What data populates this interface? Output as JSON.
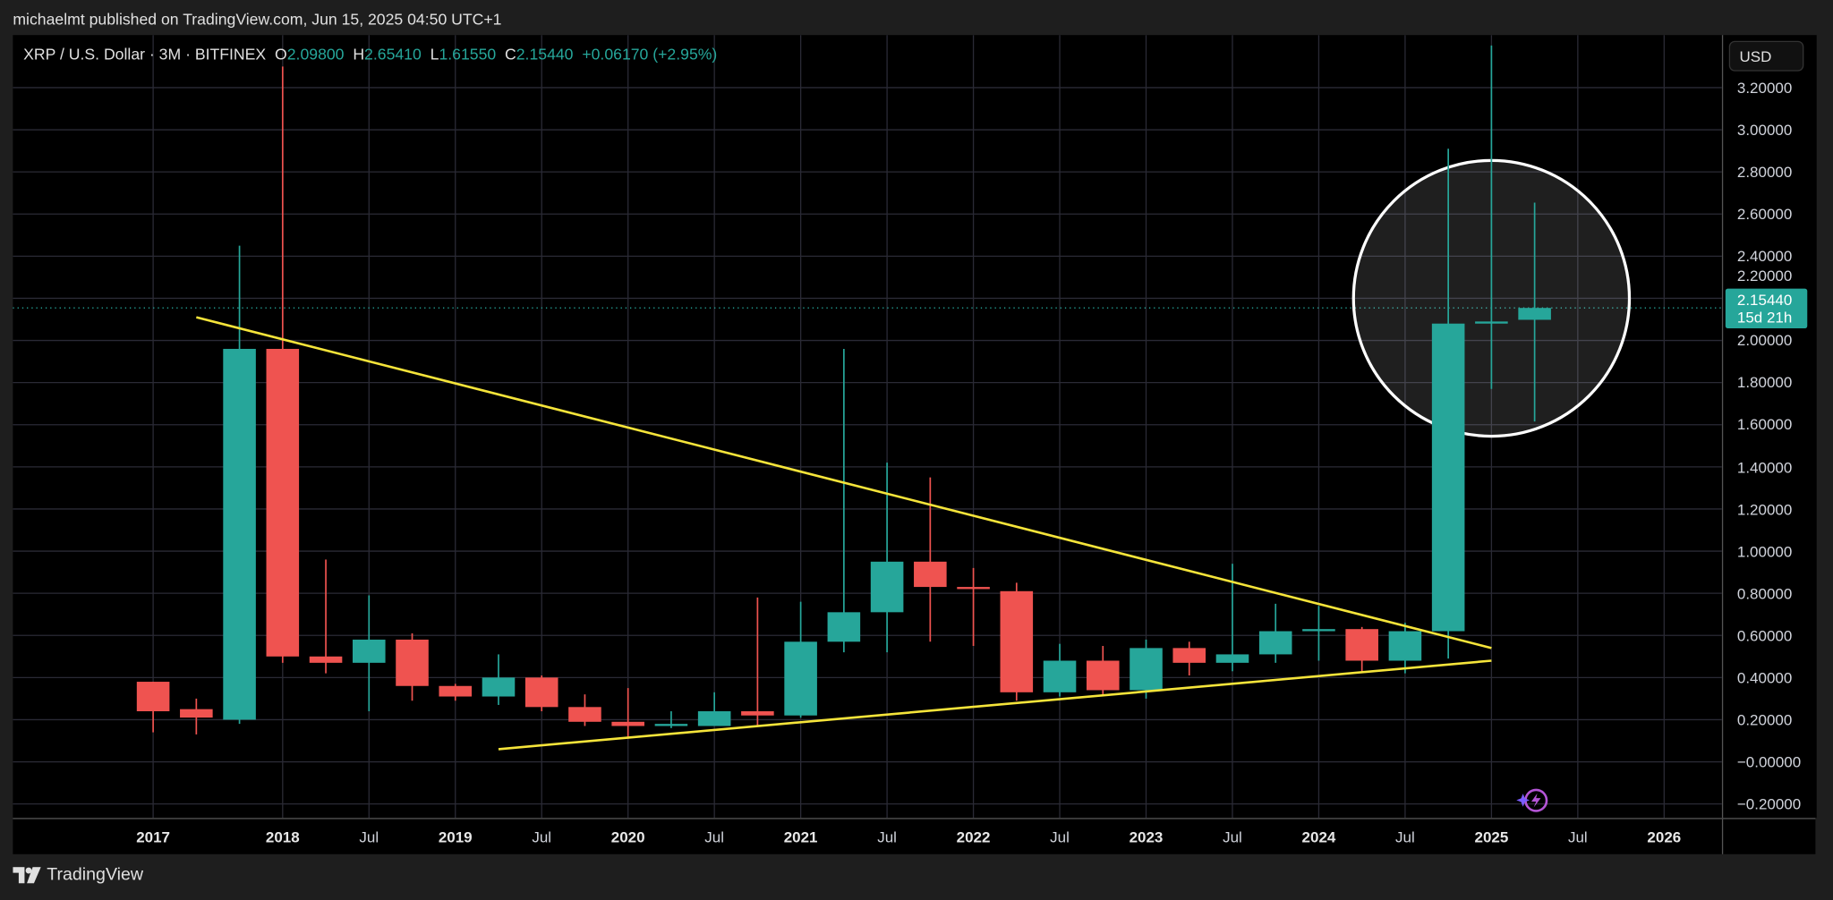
{
  "header": {
    "published": "michaelmt published on TradingView.com, Jun 15, 2025 04:50 UTC+1"
  },
  "legend": {
    "symbol": "XRP / U.S. Dollar · 3M · BITFINEX",
    "o_label": "O",
    "o": "2.09800",
    "h_label": "H",
    "h": "2.65410",
    "l_label": "L",
    "l": "1.61550",
    "c_label": "C",
    "c": "2.15440",
    "change": "+0.06170 (+2.95%)"
  },
  "price_axis": {
    "currency": "USD",
    "ticks": [
      "3.20000",
      "3.00000",
      "2.80000",
      "2.60000",
      "2.40000",
      "2.20000",
      "2.00000",
      "1.80000",
      "1.60000",
      "1.40000",
      "1.20000",
      "1.00000",
      "0.80000",
      "0.60000",
      "0.40000",
      "0.20000",
      "−0.00000",
      "−0.20000"
    ],
    "last_price": "2.15440",
    "countdown": "15d 21h"
  },
  "time_axis": {
    "ticks": [
      {
        "label": "2017",
        "date": "2017-04",
        "year": true
      },
      {
        "label": "2018",
        "date": "2018-01",
        "year": true
      },
      {
        "label": "Jul",
        "date": "2018-07",
        "year": false
      },
      {
        "label": "2019",
        "date": "2019-01",
        "year": true
      },
      {
        "label": "Jul",
        "date": "2019-07",
        "year": false
      },
      {
        "label": "2020",
        "date": "2020-01",
        "year": true
      },
      {
        "label": "Jul",
        "date": "2020-07",
        "year": false
      },
      {
        "label": "2021",
        "date": "2021-01",
        "year": true
      },
      {
        "label": "Jul",
        "date": "2021-07",
        "year": false
      },
      {
        "label": "2022",
        "date": "2022-01",
        "year": true
      },
      {
        "label": "Jul",
        "date": "2022-07",
        "year": false
      },
      {
        "label": "2023",
        "date": "2023-01",
        "year": true
      },
      {
        "label": "Jul",
        "date": "2023-07",
        "year": false
      },
      {
        "label": "2024",
        "date": "2024-01",
        "year": true
      },
      {
        "label": "Jul",
        "date": "2024-07",
        "year": false
      },
      {
        "label": "2025",
        "date": "2025-01",
        "year": true
      },
      {
        "label": "Jul",
        "date": "2025-07",
        "year": false
      },
      {
        "label": "2026",
        "date": "2026-01",
        "year": true
      }
    ]
  },
  "colors": {
    "up": "#26a69a",
    "down": "#ef5350",
    "trendline": "#f5e43a",
    "circle": "#ffffff",
    "grid": "#2a2a35"
  },
  "chart_data": {
    "type": "candlestick",
    "interval": "3M",
    "ylim": [
      -0.25,
      3.45
    ],
    "candles": [
      {
        "date": "2017-04",
        "o": 0.38,
        "h": 0.38,
        "l": 0.14,
        "c": 0.24
      },
      {
        "date": "2017-07",
        "o": 0.25,
        "h": 0.3,
        "l": 0.13,
        "c": 0.21
      },
      {
        "date": "2017-10",
        "o": 0.2,
        "h": 2.45,
        "l": 0.18,
        "c": 1.96
      },
      {
        "date": "2018-01",
        "o": 1.96,
        "h": 3.3,
        "l": 0.47,
        "c": 0.5
      },
      {
        "date": "2018-04",
        "o": 0.5,
        "h": 0.96,
        "l": 0.42,
        "c": 0.47
      },
      {
        "date": "2018-07",
        "o": 0.47,
        "h": 0.79,
        "l": 0.24,
        "c": 0.58
      },
      {
        "date": "2018-10",
        "o": 0.58,
        "h": 0.61,
        "l": 0.29,
        "c": 0.36
      },
      {
        "date": "2019-01",
        "o": 0.36,
        "h": 0.37,
        "l": 0.29,
        "c": 0.31
      },
      {
        "date": "2019-04",
        "o": 0.31,
        "h": 0.51,
        "l": 0.27,
        "c": 0.4
      },
      {
        "date": "2019-07",
        "o": 0.4,
        "h": 0.41,
        "l": 0.24,
        "c": 0.26
      },
      {
        "date": "2019-10",
        "o": 0.26,
        "h": 0.32,
        "l": 0.17,
        "c": 0.19
      },
      {
        "date": "2020-01",
        "o": 0.19,
        "h": 0.35,
        "l": 0.11,
        "c": 0.17
      },
      {
        "date": "2020-04",
        "o": 0.17,
        "h": 0.24,
        "l": 0.16,
        "c": 0.18
      },
      {
        "date": "2020-07",
        "o": 0.17,
        "h": 0.33,
        "l": 0.17,
        "c": 0.24
      },
      {
        "date": "2020-10",
        "o": 0.24,
        "h": 0.78,
        "l": 0.17,
        "c": 0.22
      },
      {
        "date": "2021-01",
        "o": 0.22,
        "h": 0.76,
        "l": 0.21,
        "c": 0.57
      },
      {
        "date": "2021-04",
        "o": 0.57,
        "h": 1.96,
        "l": 0.52,
        "c": 0.71
      },
      {
        "date": "2021-07",
        "o": 0.71,
        "h": 1.42,
        "l": 0.52,
        "c": 0.95
      },
      {
        "date": "2021-10",
        "o": 0.95,
        "h": 1.35,
        "l": 0.57,
        "c": 0.83
      },
      {
        "date": "2022-01",
        "o": 0.83,
        "h": 0.92,
        "l": 0.55,
        "c": 0.82
      },
      {
        "date": "2022-04",
        "o": 0.81,
        "h": 0.85,
        "l": 0.29,
        "c": 0.33
      },
      {
        "date": "2022-07",
        "o": 0.33,
        "h": 0.56,
        "l": 0.31,
        "c": 0.48
      },
      {
        "date": "2022-10",
        "o": 0.48,
        "h": 0.55,
        "l": 0.32,
        "c": 0.34
      },
      {
        "date": "2023-01",
        "o": 0.34,
        "h": 0.58,
        "l": 0.3,
        "c": 0.54
      },
      {
        "date": "2023-04",
        "o": 0.54,
        "h": 0.57,
        "l": 0.41,
        "c": 0.47
      },
      {
        "date": "2023-07",
        "o": 0.47,
        "h": 0.94,
        "l": 0.43,
        "c": 0.51
      },
      {
        "date": "2023-10",
        "o": 0.51,
        "h": 0.75,
        "l": 0.47,
        "c": 0.62
      },
      {
        "date": "2024-01",
        "o": 0.62,
        "h": 0.74,
        "l": 0.48,
        "c": 0.63
      },
      {
        "date": "2024-04",
        "o": 0.63,
        "h": 0.64,
        "l": 0.43,
        "c": 0.48
      },
      {
        "date": "2024-07",
        "o": 0.48,
        "h": 0.66,
        "l": 0.42,
        "c": 0.62
      },
      {
        "date": "2024-10",
        "o": 0.62,
        "h": 2.91,
        "l": 0.49,
        "c": 2.08
      },
      {
        "date": "2025-01",
        "o": 2.08,
        "h": 3.4,
        "l": 1.77,
        "c": 2.09
      },
      {
        "date": "2025-04",
        "o": 2.098,
        "h": 2.6541,
        "l": 1.6155,
        "c": 2.1544
      }
    ],
    "trendlines": [
      {
        "from": {
          "date": "2017-07",
          "price": 2.11
        },
        "to": {
          "date": "2025-01",
          "price": 0.54
        }
      },
      {
        "from": {
          "date": "2019-04",
          "price": 0.06
        },
        "to": {
          "date": "2025-01",
          "price": 0.48
        }
      }
    ],
    "circle_annotation": {
      "date": "2025-01",
      "price": 2.2
    },
    "last_price": 2.1544
  },
  "footer": {
    "brand": "TradingView"
  }
}
